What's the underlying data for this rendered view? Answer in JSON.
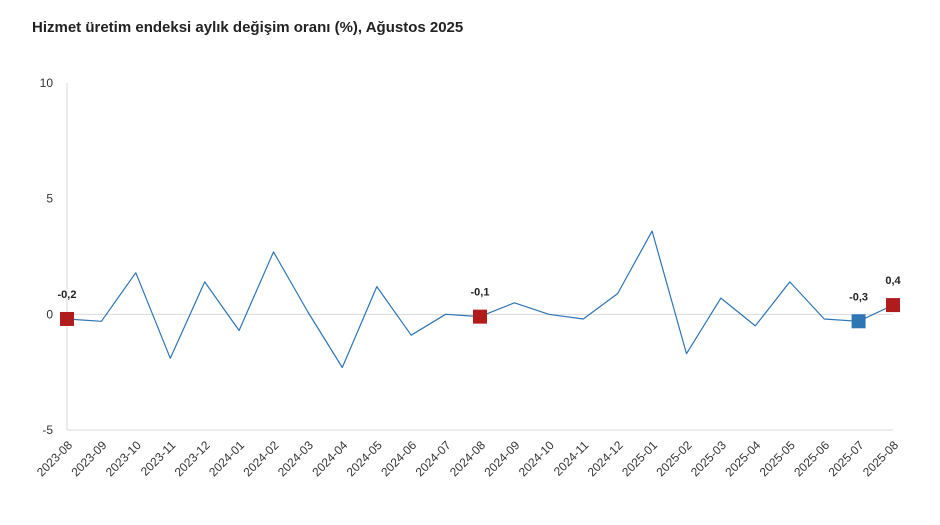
{
  "chart_data": {
    "type": "line",
    "title": "Hizmet üretim endeksi aylık değişim oranı (%), Ağustos 2025",
    "xlabel": "",
    "ylabel": "",
    "ylim": [
      -5,
      10
    ],
    "yticks": [
      10,
      5,
      0,
      -5
    ],
    "ytick_labels": [
      "10",
      "5",
      "0",
      "-5"
    ],
    "grid": "zero-line only",
    "legend": "none",
    "categories": [
      "2023-08",
      "2023-09",
      "2023-10",
      "2023-11",
      "2023-12",
      "2024-01",
      "2024-02",
      "2024-03",
      "2024-04",
      "2024-05",
      "2024-06",
      "2024-07",
      "2024-08",
      "2024-09",
      "2024-10",
      "2024-11",
      "2024-12",
      "2025-01",
      "2025-02",
      "2025-03",
      "2025-04",
      "2025-05",
      "2025-06",
      "2025-07",
      "2025-08"
    ],
    "series": [
      {
        "values": [
          -0.2,
          -0.3,
          1.8,
          -1.9,
          1.4,
          -0.7,
          2.7,
          0.1,
          -2.3,
          1.2,
          -0.9,
          0.0,
          -0.1,
          0.5,
          0.0,
          -0.2,
          0.9,
          3.6,
          -1.7,
          0.7,
          -0.5,
          1.4,
          -0.2,
          -0.3,
          0.4
        ],
        "color": "#2e75b6"
      }
    ],
    "highlighted_points": [
      {
        "category": "2023-08",
        "label": "-0,2",
        "color": "#b01c1c"
      },
      {
        "category": "2024-08",
        "label": "-0,1",
        "color": "#b01c1c"
      },
      {
        "category": "2025-07",
        "label": "-0,3",
        "color": "#2e75b6"
      },
      {
        "category": "2025-08",
        "label": "0,4",
        "color": "#b01c1c"
      }
    ],
    "colors": {
      "line": "#2e75b6",
      "axis": "#d9d9d9",
      "zero_line": "#d9d9d9"
    }
  }
}
